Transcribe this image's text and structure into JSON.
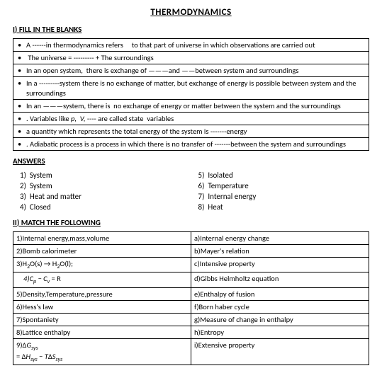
{
  "title": "THERMODYNAMICS",
  "section1_heading": "I) FILL IN THE BLANKS",
  "blanks": [
    "A ------in thermodynamics refers     to that part of universe in which observations are carried out",
    " The universe = --------- + The surroundings",
    "In an open system,  there is exchange of ———and ——between system and surroundings",
    "In a ---------system there is no exchange of matter, but exchange of energy is possible between system and the surroundings",
    "In an ———system, there is  no exchange of energy or matter between the system and the surroundings",
    ". Variables like <i>p,  V,</i> ---- are called state  variables",
    "a quantity which represents the total energy of the system is -------energy",
    ". Adiabatic process is a process in which there is no transfer of -------between the system and surroundings"
  ],
  "answers_heading": "ANSWERS",
  "answers_left": [
    "1)  System",
    "2)  System",
    "3)  Heat and matter",
    "4)  Closed"
  ],
  "answers_right": [
    "5)  Isolated",
    "6)  Temperature",
    "7)  Internal energy",
    "8)  Heat"
  ],
  "section2_heading": "II) MATCH THE FOLLOWING",
  "match_left": [
    "1)Internal energy,mass,volume",
    "2)Bomb calorimeter",
    "3)H<span class='sub2'>2</span>O(s) → H<span class='sub2'>2</span>O(l);",
    "<span class='indent ital'>4)C<span class='sub2'>p</span> − C<span class='sub2'>v</span></span> = R",
    "5)Density,Temperature,pressure",
    "6)Hess's law",
    "7)Spontaniety",
    "8)Lattice enthalpy",
    "9)Δ<span class='ital'>G<span class='sub2'>sys</span></span><br>= Δ<span class='ital'>H<span class='sub2'>sys</span></span> − <span class='ital'>T</span>Δ<span class='ital'>S<span class='sub2'>sys</span></span>"
  ],
  "match_right": [
    "a)Internal energy change",
    "b)Mayer's relation",
    "c)Intensive property",
    "d)Gibbs Helmholtz equation",
    "e)Enthalpy of fusion",
    "f)Born haber cycle",
    "g)Measure of change in enthalpy",
    "h)Entropy",
    "i)Extensive property"
  ]
}
